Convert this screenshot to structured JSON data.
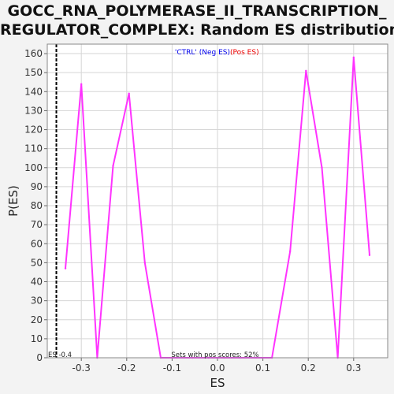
{
  "chart_data": {
    "type": "line",
    "title_lines": [
      "GOCC_RNA_POLYMERASE_II_TRANSCRIPTION_",
      "REGULATOR_COMPLEX: Random ES distribution"
    ],
    "xlabel": "ES",
    "ylabel": "P(ES)",
    "xlim": [
      -0.375,
      0.375
    ],
    "ylim": [
      0,
      165
    ],
    "x_ticks": [
      -0.3,
      -0.2,
      -0.1,
      0.0,
      0.1,
      0.2,
      0.3
    ],
    "x_tick_labels": [
      "-0.3",
      "-0.2",
      "-0.1",
      "0.0",
      "0.1",
      "0.2",
      "0.3"
    ],
    "y_ticks": [
      0,
      10,
      20,
      30,
      40,
      50,
      60,
      70,
      80,
      90,
      100,
      110,
      120,
      130,
      140,
      150,
      160
    ],
    "grid": true,
    "legend": {
      "placement": "top-center",
      "entries": [
        {
          "text": "'CTRL' (Neg ES)",
          "color": "#0000ee"
        },
        {
          "text": "(Pos ES)",
          "color": "#ee0000"
        }
      ]
    },
    "series": [
      {
        "color": "#ff33ff",
        "x": [
          -0.335,
          -0.3,
          -0.265,
          -0.23,
          -0.195,
          -0.16,
          -0.125,
          -0.09,
          -0.055,
          -0.02,
          0.015,
          0.05,
          0.085,
          0.12,
          0.16,
          0.195,
          0.23,
          0.265,
          0.3,
          0.335
        ],
        "y": [
          47,
          144,
          0,
          101,
          139,
          50,
          0,
          0,
          0,
          0,
          0,
          0,
          0,
          0,
          56,
          151,
          100,
          0,
          158,
          54
        ]
      }
    ],
    "vline": {
      "x": -0.355,
      "style": "dashed",
      "color": "#000000"
    },
    "annotations": [
      {
        "text": "ES -0.4"
      },
      {
        "text": "Sets with pos scores: 52%"
      }
    ]
  }
}
